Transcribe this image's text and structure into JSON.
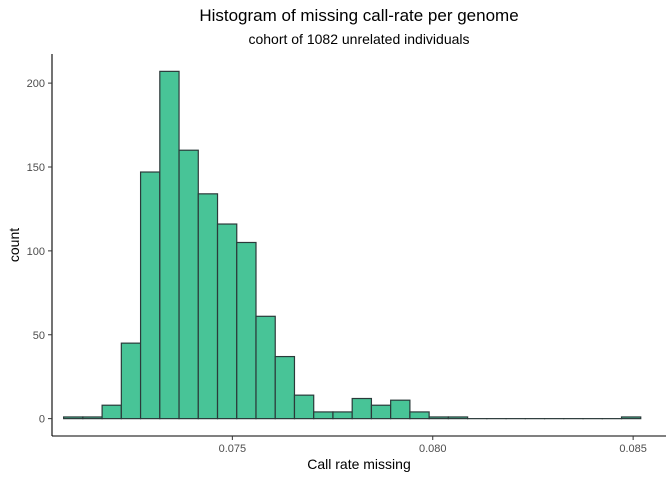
{
  "chart_data": {
    "type": "bar",
    "subtype": "histogram",
    "title": "Histogram of missing call-rate per genome",
    "subtitle": "cohort of 1082 unrelated individuals",
    "xlabel": "Call rate missing",
    "ylabel": "count",
    "bin_width": 0.00048,
    "bins": [
      {
        "x": 0.07103,
        "count": 1
      },
      {
        "x": 0.07151,
        "count": 1
      },
      {
        "x": 0.07199,
        "count": 8
      },
      {
        "x": 0.07247,
        "count": 45
      },
      {
        "x": 0.07295,
        "count": 147
      },
      {
        "x": 0.07343,
        "count": 207
      },
      {
        "x": 0.07391,
        "count": 160
      },
      {
        "x": 0.07439,
        "count": 134
      },
      {
        "x": 0.07487,
        "count": 116
      },
      {
        "x": 0.07535,
        "count": 105
      },
      {
        "x": 0.07583,
        "count": 61
      },
      {
        "x": 0.07631,
        "count": 37
      },
      {
        "x": 0.07679,
        "count": 14
      },
      {
        "x": 0.07727,
        "count": 4
      },
      {
        "x": 0.07775,
        "count": 4
      },
      {
        "x": 0.07823,
        "count": 12
      },
      {
        "x": 0.07871,
        "count": 8
      },
      {
        "x": 0.07919,
        "count": 11
      },
      {
        "x": 0.07967,
        "count": 4
      },
      {
        "x": 0.08015,
        "count": 1
      },
      {
        "x": 0.08063,
        "count": 1
      },
      {
        "x": 0.08111,
        "count": 0
      },
      {
        "x": 0.08159,
        "count": 0
      },
      {
        "x": 0.08207,
        "count": 0
      },
      {
        "x": 0.08255,
        "count": 0
      },
      {
        "x": 0.08303,
        "count": 0
      },
      {
        "x": 0.08351,
        "count": 0
      },
      {
        "x": 0.08399,
        "count": 0
      },
      {
        "x": 0.08447,
        "count": 0
      },
      {
        "x": 0.08495,
        "count": 1
      }
    ],
    "x_ticks": [
      {
        "value": 0.075,
        "label": "0.075"
      },
      {
        "value": 0.08,
        "label": "0.080"
      },
      {
        "value": 0.085,
        "label": "0.085"
      }
    ],
    "y_ticks": [
      {
        "value": 0,
        "label": "0"
      },
      {
        "value": 50,
        "label": "50"
      },
      {
        "value": 100,
        "label": "100"
      },
      {
        "value": 150,
        "label": "150"
      },
      {
        "value": 200,
        "label": "200"
      }
    ],
    "xlim": [
      0.0705,
      0.08582
    ],
    "ylim": [
      -10.35,
      217.35
    ],
    "grid": false,
    "legend": "none",
    "bar_fill": "#48c497",
    "bar_stroke": "#2b3a3a"
  }
}
